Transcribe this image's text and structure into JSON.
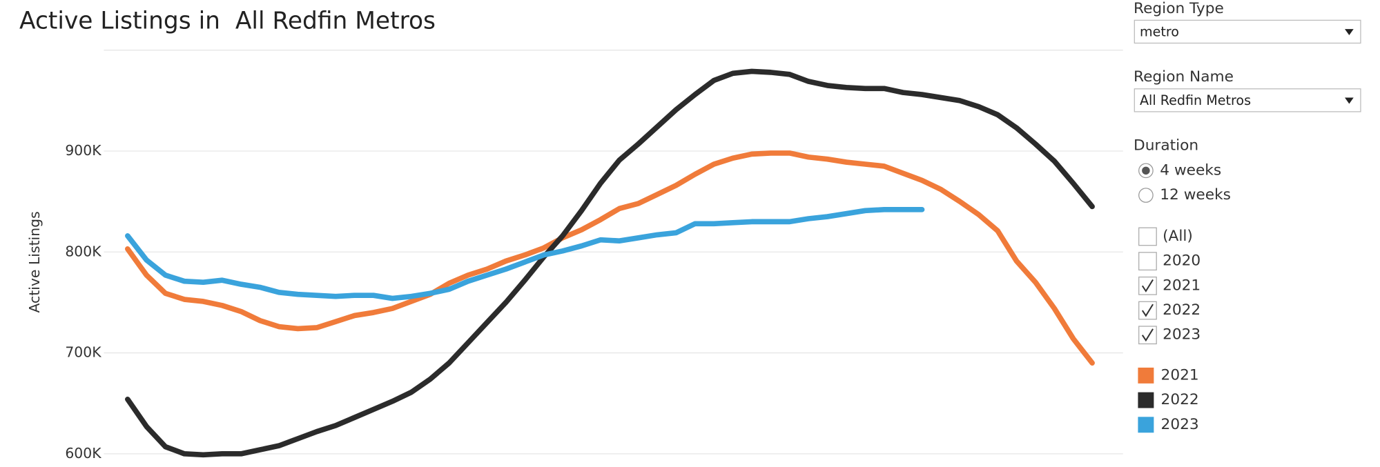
{
  "chart_data": {
    "type": "line",
    "title": "Active Listings in  All Redfin Metros",
    "y_label": "Active Listings",
    "ylim": [
      600000,
      1000000
    ],
    "yticks": [
      {
        "value": 600000,
        "label": "600K"
      },
      {
        "value": 700000,
        "label": "700K"
      },
      {
        "value": 800000,
        "label": "800K"
      },
      {
        "value": 900000,
        "label": "900K"
      }
    ],
    "grid": true,
    "series": [
      {
        "name": "2021",
        "color": "#f07b3a",
        "values": [
          803000,
          777000,
          759000,
          753000,
          751000,
          747000,
          741000,
          732000,
          726000,
          724000,
          725000,
          731000,
          737000,
          740000,
          744000,
          751000,
          758000,
          769000,
          777000,
          783000,
          791000,
          797000,
          804000,
          814000,
          822000,
          832000,
          843000,
          848000,
          857000,
          866000,
          877000,
          887000,
          893000,
          897000,
          898000,
          898000,
          894000,
          892000,
          889000,
          887000,
          885000,
          878000,
          871000,
          862000,
          850000,
          837000,
          821000,
          791000,
          770000,
          744000,
          714000,
          690000
        ]
      },
      {
        "name": "2022",
        "color": "#2b2b2b",
        "values": [
          654000,
          627000,
          607000,
          600000,
          599000,
          600000,
          600000,
          604000,
          608000,
          615000,
          622000,
          628000,
          636000,
          644000,
          652000,
          661000,
          674000,
          690000,
          710000,
          730000,
          750000,
          772000,
          795000,
          816000,
          841000,
          868000,
          891000,
          907000,
          924000,
          941000,
          956000,
          970000,
          977000,
          979000,
          978000,
          976000,
          969000,
          965000,
          963000,
          962000,
          962000,
          958000,
          956000,
          953000,
          950000,
          944000,
          936000,
          923000,
          907000,
          890000,
          868000,
          845000
        ]
      },
      {
        "name": "2023",
        "color": "#3aa3dc",
        "values": [
          816000,
          792000,
          777000,
          771000,
          770000,
          772000,
          768000,
          765000,
          760000,
          758000,
          757000,
          756000,
          757000,
          757000,
          754000,
          756000,
          759000,
          763000,
          771000,
          777000,
          783000,
          790000,
          797000,
          801000,
          806000,
          812000,
          811000,
          814000,
          817000,
          819000,
          828000,
          828000,
          829000,
          830000,
          830000,
          830000,
          833000,
          835000,
          838000,
          841000,
          842000,
          842000,
          842000
        ]
      }
    ]
  },
  "filters": {
    "region_type": {
      "label": "Region Type",
      "value": "metro"
    },
    "region_name": {
      "label": "Region Name",
      "value": "All Redfin Metros"
    },
    "duration": {
      "label": "Duration",
      "options": [
        {
          "text": "4 weeks",
          "selected": true
        },
        {
          "text": "12 weeks",
          "selected": false
        }
      ]
    },
    "years": [
      {
        "text": "(All)",
        "checked": false
      },
      {
        "text": "2020",
        "checked": false
      },
      {
        "text": "2021",
        "checked": true
      },
      {
        "text": "2022",
        "checked": true
      },
      {
        "text": "2023",
        "checked": true
      }
    ]
  }
}
